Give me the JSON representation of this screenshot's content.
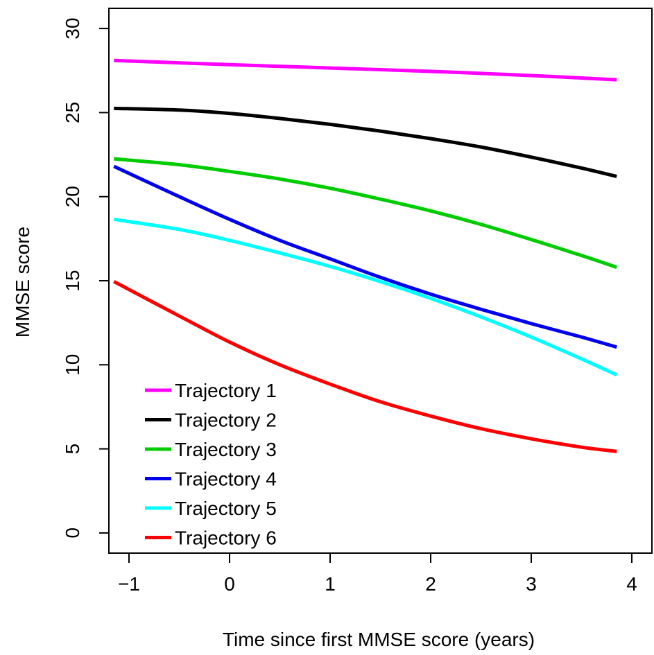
{
  "chart_data": {
    "type": "line",
    "title": "",
    "xlabel": "Time since first MMSE score (years)",
    "ylabel": "MMSE score",
    "xlim": [
      -1.2,
      4.2
    ],
    "ylim": [
      -1.2,
      31.2
    ],
    "x_ticks": [
      -1,
      0,
      1,
      2,
      3,
      4
    ],
    "y_ticks": [
      0,
      5,
      10,
      15,
      20,
      25,
      30
    ],
    "x_tick_labels": [
      "−1",
      "0",
      "1",
      "2",
      "3",
      "4"
    ],
    "y_tick_labels": [
      "0",
      "5",
      "10",
      "15",
      "20",
      "25",
      "30"
    ],
    "grid": false,
    "legend_position": "bottom-left",
    "series": [
      {
        "name": "Trajectory 1",
        "color": "#ff00ff",
        "x": [
          -1.15,
          0,
          1,
          2,
          3,
          3.85
        ],
        "y": [
          28.1,
          27.85,
          27.65,
          27.45,
          27.2,
          26.95
        ]
      },
      {
        "name": "Trajectory 2",
        "color": "#000000",
        "x": [
          -1.15,
          -0.5,
          0,
          0.5,
          1,
          1.5,
          2,
          2.5,
          3,
          3.5,
          3.85
        ],
        "y": [
          25.25,
          25.15,
          24.95,
          24.65,
          24.3,
          23.9,
          23.45,
          22.95,
          22.35,
          21.7,
          21.2
        ]
      },
      {
        "name": "Trajectory 3",
        "color": "#00cc00",
        "x": [
          -1.15,
          -0.5,
          0,
          0.5,
          1,
          1.5,
          2,
          2.5,
          3,
          3.5,
          3.85
        ],
        "y": [
          22.25,
          21.9,
          21.5,
          21.05,
          20.5,
          19.85,
          19.15,
          18.35,
          17.45,
          16.5,
          15.8
        ]
      },
      {
        "name": "Trajectory 4",
        "color": "#0000ee",
        "x": [
          -1.15,
          -0.5,
          0,
          0.5,
          1,
          1.5,
          2,
          2.5,
          3,
          3.5,
          3.85
        ],
        "y": [
          21.8,
          20.0,
          18.65,
          17.4,
          16.3,
          15.2,
          14.2,
          13.3,
          12.45,
          11.65,
          11.05
        ]
      },
      {
        "name": "Trajectory 5",
        "color": "#00ffff",
        "x": [
          -1.15,
          -0.5,
          0,
          0.5,
          1,
          1.5,
          2,
          2.5,
          3,
          3.5,
          3.85
        ],
        "y": [
          18.65,
          18.05,
          17.4,
          16.65,
          15.85,
          14.95,
          13.95,
          12.85,
          11.65,
          10.35,
          9.4
        ]
      },
      {
        "name": "Trajectory 6",
        "color": "#ff0000",
        "x": [
          -1.15,
          -0.5,
          0,
          0.5,
          1,
          1.5,
          2,
          2.5,
          3,
          3.5,
          3.85
        ],
        "y": [
          14.95,
          12.9,
          11.35,
          10.0,
          8.85,
          7.8,
          6.95,
          6.2,
          5.6,
          5.1,
          4.85
        ]
      }
    ]
  }
}
